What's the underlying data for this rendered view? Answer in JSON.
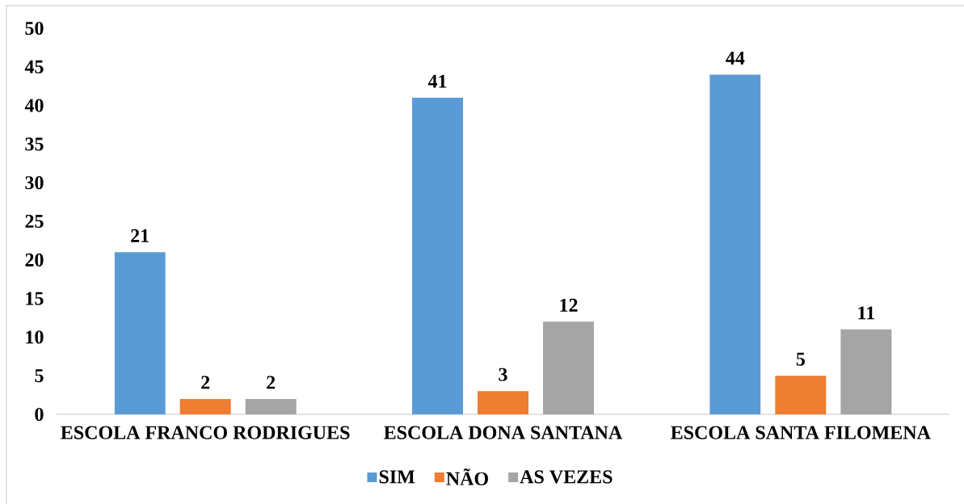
{
  "chart_data": {
    "type": "bar",
    "categories": [
      "ESCOLA FRANCO RODRIGUES",
      "ESCOLA DONA SANTANA",
      "ESCOLA SANTA FILOMENA"
    ],
    "series": [
      {
        "name": "SIM",
        "color": "#5b9bd5",
        "values": [
          21,
          41,
          44
        ]
      },
      {
        "name": "NÃO",
        "color": "#ed7d31",
        "values": [
          2,
          3,
          5
        ]
      },
      {
        "name": "AS VEZES",
        "color": "#a5a5a5",
        "values": [
          2,
          12,
          11
        ]
      }
    ],
    "ylim": [
      0,
      50
    ],
    "yticks": [
      0,
      5,
      10,
      15,
      20,
      25,
      30,
      35,
      40,
      45,
      50
    ],
    "legend": "bottom",
    "data_labels": true
  }
}
